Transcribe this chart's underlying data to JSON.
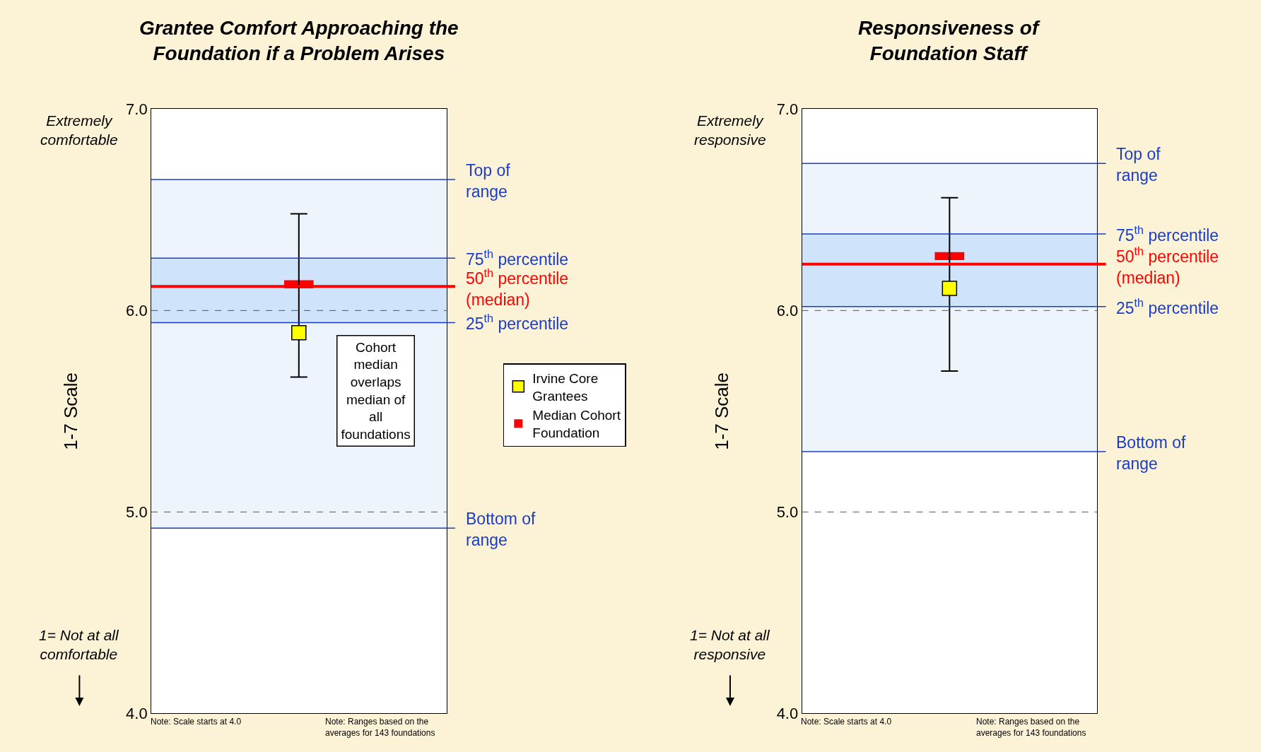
{
  "chart_data": [
    {
      "type": "scatter",
      "title": "Grantee Comfort Approaching the\nFoundation if a Problem Arises",
      "ylabel": "1-7 Scale",
      "categories": [
        null,
        null,
        null
      ],
      "ylim": [
        4.0,
        7.0
      ],
      "yticks": [
        {
          "value": 4,
          "label": "4.0"
        },
        {
          "value": 5,
          "label": "5.0"
        },
        {
          "value": 6,
          "label": "6.0"
        },
        {
          "value": 7,
          "label": "7.0"
        }
      ],
      "grid": "y",
      "legend": "right",
      "tick_labels": "y",
      "series": [
        {
          "name": "Irvine Core Grantees",
          "marker": "square",
          "color": "#ffff00",
          "values": [
            null,
            5.89,
            null
          ],
          "errors": [
            null,
            [
              5.67,
              6.48
            ],
            null
          ]
        },
        {
          "name": "Median Cohort Foundation",
          "type": "bar",
          "color": "#ff0000",
          "base": [
            null,
            6.11,
            null
          ],
          "values": [
            null,
            0.04,
            null
          ]
        }
      ],
      "bands": [
        {
          "axis": "y",
          "from": 4.92,
          "to": 6.65,
          "color": "#eef4fc"
        },
        {
          "axis": "y",
          "from": 5.94,
          "to": 6.26,
          "color": "#cfe3fa"
        }
      ],
      "ref_lines": [
        {
          "axis": "y",
          "value": 6.65,
          "label": "Top of\nrange",
          "color": "#1a3cc8"
        },
        {
          "axis": "y",
          "value": 6.26,
          "label": "75$^{th}$ percentile",
          "color": "#1a3cc8"
        },
        {
          "axis": "y",
          "value": 6.12,
          "label": "50$^{th}$ percentile\n(median)",
          "color": "#ff0000"
        },
        {
          "axis": "y",
          "value": 5.94,
          "label": "25$^{th}$ percentile",
          "color": "#1a3cc8"
        },
        {
          "axis": "y",
          "value": 4.92,
          "label": "Bottom of\nrange",
          "color": "#1a3cc8"
        }
      ],
      "annotations": [
        "Extremely\ncomfortable",
        "1= Not at all\ncomfortable",
        "Cohort\nmedian\noverlaps\nmedian of\nall\nfoundations",
        "Note: Scale starts at 4.0",
        "Note: Ranges based on the\naverages for 143 foundations"
      ]
    },
    {
      "type": "scatter",
      "title": "Responsiveness of\nFoundation Staff",
      "ylabel": "1-7 Scale",
      "categories": [
        null,
        null,
        null
      ],
      "ylim": [
        4.0,
        7.0
      ],
      "yticks": [
        {
          "value": 4,
          "label": "4.0"
        },
        {
          "value": 5,
          "label": "5.0"
        },
        {
          "value": 6,
          "label": "6.0"
        },
        {
          "value": 7,
          "label": "7.0"
        }
      ],
      "grid": "y",
      "tick_labels": "y",
      "series": [
        {
          "marker": "square",
          "color": "#ffff00",
          "values": [
            null,
            6.11,
            null
          ],
          "errors": [
            null,
            [
              5.7,
              6.56
            ],
            null
          ]
        },
        {
          "type": "bar",
          "color": "#ff0000",
          "base": [
            null,
            6.25,
            null
          ],
          "values": [
            null,
            0.04,
            null
          ]
        }
      ],
      "bands": [
        {
          "axis": "y",
          "from": 5.3,
          "to": 6.73,
          "color": "#eef4fc"
        },
        {
          "axis": "y",
          "from": 6.02,
          "to": 6.38,
          "color": "#cfe3fa"
        }
      ],
      "ref_lines": [
        {
          "axis": "y",
          "value": 6.73,
          "label": "Top of\nrange",
          "color": "#1a3cc8"
        },
        {
          "axis": "y",
          "value": 6.38,
          "label": "75$^{th}$ percentile",
          "color": "#1a3cc8"
        },
        {
          "axis": "y",
          "value": 6.23,
          "label": "50$^{th}$ percentile\n(median)",
          "color": "#ff0000"
        },
        {
          "axis": "y",
          "value": 6.02,
          "label": "25$^{th}$ percentile",
          "color": "#1a3cc8"
        },
        {
          "axis": "y",
          "value": 5.3,
          "label": "Bottom of\nrange",
          "color": "#1a3cc8"
        }
      ],
      "annotations": [
        "Extremely\nresponsive",
        "1= Not at all\nresponsive",
        "Note: Scale starts at 4.0",
        "Note: Ranges based on the\naverages for 143 foundations"
      ]
    }
  ]
}
